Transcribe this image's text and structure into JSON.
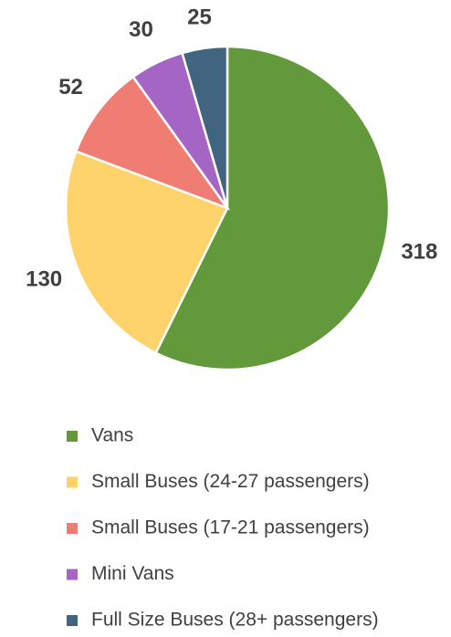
{
  "chart_data": {
    "type": "pie",
    "categories": [
      "Vans",
      "Small Buses (24-27 passengers)",
      "Small Buses (17-21 passengers)",
      "Mini Vans",
      "Full Size Buses (28+ passengers)"
    ],
    "values": [
      318,
      130,
      52,
      30,
      25
    ],
    "colors": [
      "#62993a",
      "#ffd36b",
      "#f07d73",
      "#a565c4",
      "#41657f"
    ],
    "legend": "bottom"
  }
}
